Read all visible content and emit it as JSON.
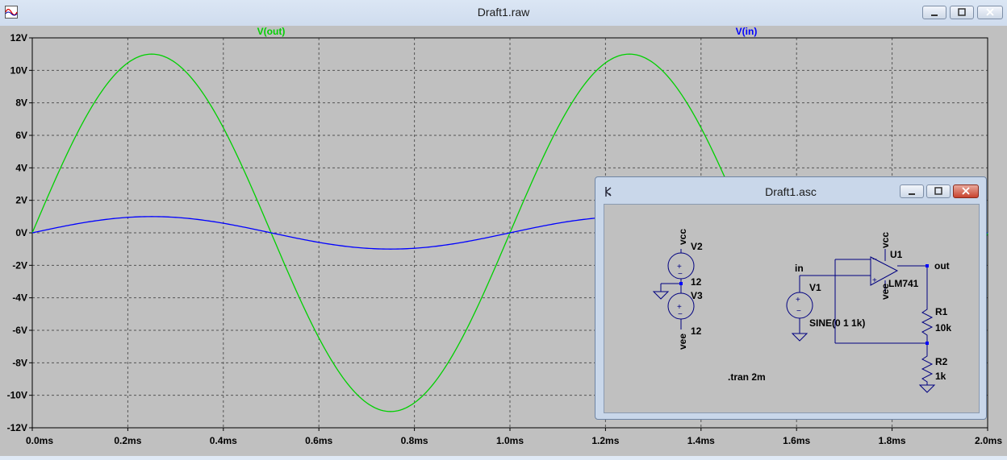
{
  "window": {
    "title": "Draft1.raw",
    "icon": "waveform-app-icon"
  },
  "plot": {
    "traces": [
      {
        "name": "V(out)",
        "color": "#00d000"
      },
      {
        "name": "V(in)",
        "color": "#0000ff"
      }
    ],
    "background": "#c0c0c0"
  },
  "chart_data": {
    "type": "line",
    "xlim": [
      0,
      2
    ],
    "ylim": [
      -12,
      12
    ],
    "x_ticks": [
      "0.0ms",
      "0.2ms",
      "0.4ms",
      "0.6ms",
      "0.8ms",
      "1.0ms",
      "1.2ms",
      "1.4ms",
      "1.6ms",
      "1.8ms",
      "2.0ms"
    ],
    "y_ticks": [
      "12V",
      "10V",
      "8V",
      "6V",
      "4V",
      "2V",
      "0V",
      "-2V",
      "-4V",
      "-6V",
      "-8V",
      "-10V",
      "-12V"
    ],
    "grid": true,
    "series": [
      {
        "name": "V(out)",
        "color": "#00d000",
        "function": "11*sin(2*pi*1k*t)",
        "amplitude": 11,
        "frequency_khz": 1
      },
      {
        "name": "V(in)",
        "color": "#0000ff",
        "function": "1*sin(2*pi*1k*t)",
        "amplitude": 1,
        "frequency_khz": 1
      }
    ]
  },
  "schematic_window": {
    "title": "Draft1.asc",
    "labels": {
      "v2": "V2",
      "v2_value": "12",
      "v3": "V3",
      "v3_value": "12",
      "vcc_top": "vcc",
      "vee_bottom": "vee",
      "in_net": "in",
      "v1": "V1",
      "sine": "SINE(0 1 1k)",
      "u1": "U1",
      "lm741": "LM741",
      "op_vcc": "vcc",
      "op_vee": "vee",
      "out_net": "out",
      "r1": "R1",
      "r1_value": "10k",
      "r2": "R2",
      "r2_value": "1k",
      "tran": ".tran 2m"
    }
  }
}
